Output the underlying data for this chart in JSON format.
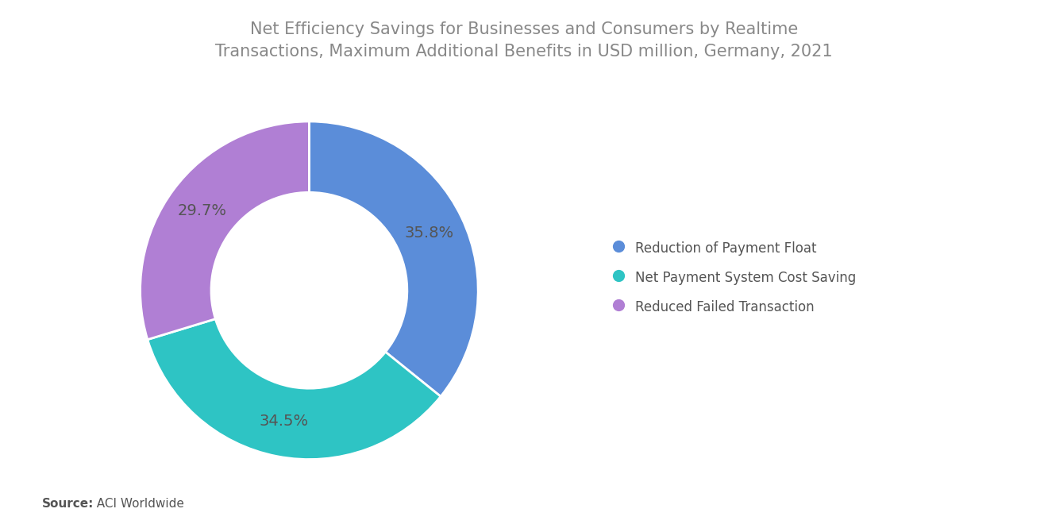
{
  "title": "Net Efficiency Savings for Businesses and Consumers by Realtime\nTransactions, Maximum Additional Benefits in USD million, Germany, 2021",
  "title_fontsize": 15,
  "title_color": "#888888",
  "slices": [
    35.8,
    34.5,
    29.7
  ],
  "labels": [
    "Reduction of Payment Float",
    "Net Payment System Cost Saving",
    "Reduced Failed Transaction"
  ],
  "pct_labels": [
    "35.8%",
    "34.5%",
    "29.7%"
  ],
  "colors": [
    "#5B8DD9",
    "#2EC4C4",
    "#B07FD4"
  ],
  "label_color": "#555555",
  "background_color": "#FFFFFF",
  "source_bold": "Source:",
  "source_rest": "  ACI Worldwide",
  "source_fontsize": 11,
  "legend_fontsize": 12,
  "pct_fontsize": 14,
  "donut_width": 0.42,
  "startangle": 90,
  "counterclock": false
}
